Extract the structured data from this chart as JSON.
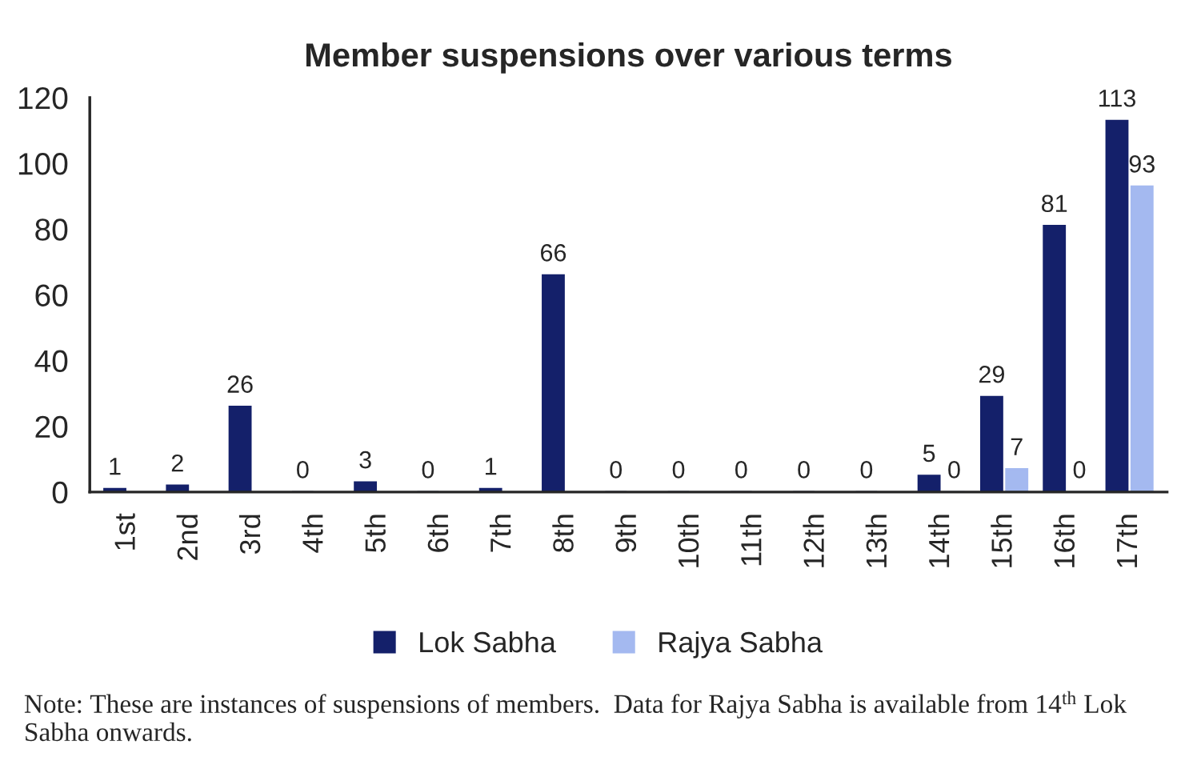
{
  "chart_data": {
    "type": "bar",
    "title": "Member suspensions over various terms",
    "categories": [
      "1st",
      "2nd",
      "3rd",
      "4th",
      "5th",
      "6th",
      "7th",
      "8th",
      "9th",
      "10th",
      "11th",
      "12th",
      "13th",
      "14th",
      "15th",
      "16th",
      "17th"
    ],
    "series": [
      {
        "name": "Lok Sabha",
        "color": "#14206a",
        "values": [
          1,
          2,
          26,
          0,
          3,
          0,
          1,
          66,
          0,
          0,
          0,
          0,
          0,
          5,
          29,
          81,
          113
        ]
      },
      {
        "name": "Rajya Sabha",
        "color": "#a4b9f0",
        "values": [
          null,
          null,
          null,
          null,
          null,
          null,
          null,
          null,
          null,
          null,
          null,
          null,
          null,
          0,
          7,
          0,
          93
        ]
      }
    ],
    "ylim": [
      0,
      120
    ],
    "yticks": [
      0,
      20,
      40,
      60,
      80,
      100,
      120
    ],
    "grid": false,
    "legend": "bottom",
    "data_labels": true,
    "annotations": [
      "Note: These are instances of suspensions of members.  Data for Rajya Sabha is available from 14$^{th}$ Lok Sabha onwards."
    ]
  }
}
